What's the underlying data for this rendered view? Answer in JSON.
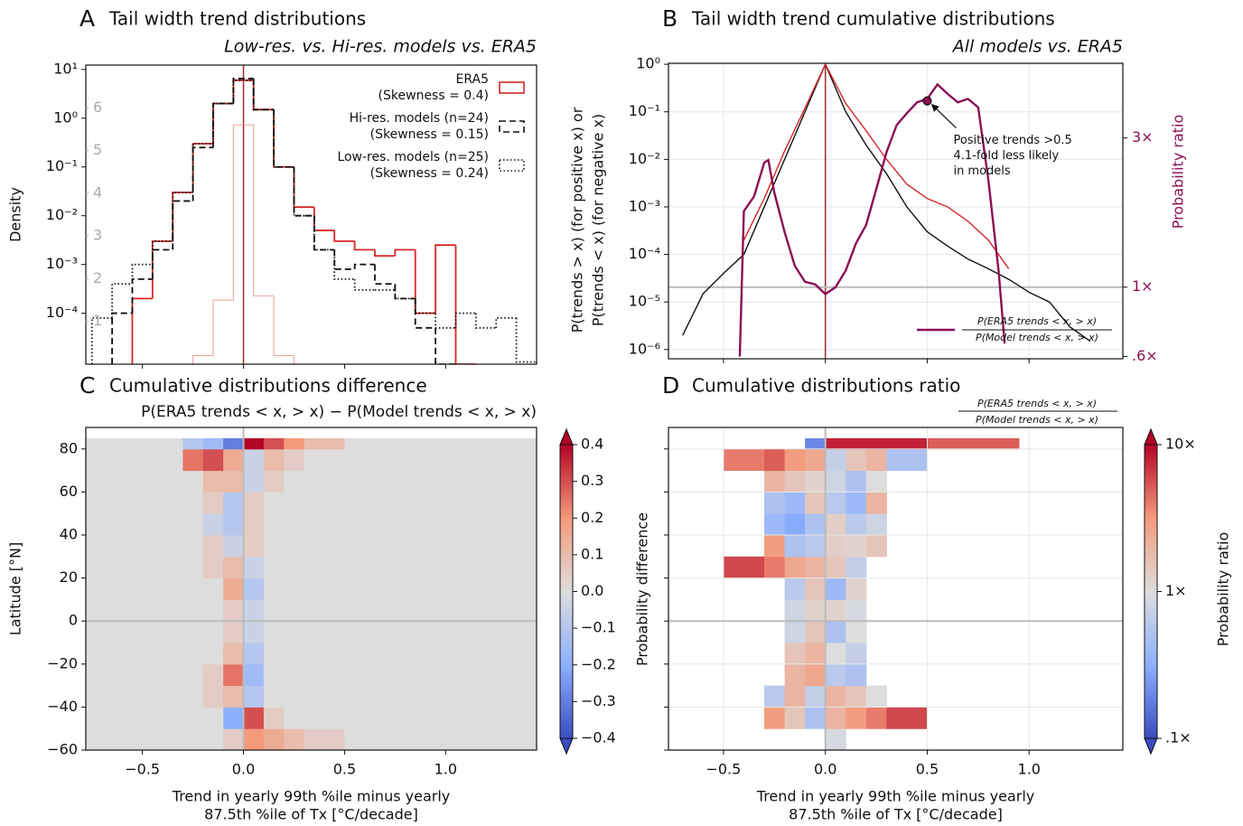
{
  "chart_data": [
    {
      "type": "histogram",
      "panel_label": "A",
      "title": "Tail width trend distributions",
      "subtitle": "Low-res. vs. Hi-res. models vs. ERA5",
      "ylabel": "Density",
      "bins": [
        -0.75,
        -0.65,
        -0.55,
        -0.45,
        -0.35,
        -0.25,
        -0.15,
        -0.05,
        0.05,
        0.15,
        0.25,
        0.35,
        0.45,
        0.55,
        0.65,
        0.75,
        0.85,
        0.95,
        1.05,
        1.15,
        1.25,
        1.35,
        1.45
      ],
      "series": [
        {
          "name": "ERA5",
          "legend_note": "(Skewness = 0.4)",
          "color": "#d62728",
          "linestyle": "solid",
          "values": [
            null,
            null,
            0.0002,
            0.003,
            0.03,
            0.3,
            2,
            6,
            1.5,
            0.1,
            0.015,
            0.005,
            0.003,
            0.002,
            0.0015,
            0.002,
            0.0001,
            0.0025,
            null,
            null,
            null,
            null
          ]
        },
        {
          "name": "Hi-res. models (n=24)",
          "legend_note": "(Skewness = 0.15)",
          "color": "#111111",
          "linestyle": "dashed",
          "values": [
            null,
            0.0001,
            0.0005,
            0.002,
            0.02,
            0.25,
            2,
            6.5,
            1.5,
            0.1,
            0.01,
            0.002,
            0.0008,
            0.001,
            0.0004,
            0.0002,
            5e-05,
            null,
            null,
            null,
            null,
            null
          ]
        },
        {
          "name": "Low-res. models (n=25)",
          "legend_note": "(Skewness = 0.24)",
          "color": "#111111",
          "linestyle": "dotted",
          "values": [
            8e-05,
            0.0004,
            0.001,
            0.003,
            0.03,
            0.3,
            2,
            6,
            1.5,
            0.1,
            0.01,
            0.002,
            0.0005,
            0.0003,
            0.0003,
            0.0002,
            0.0001,
            5e-05,
            0.0001,
            5e-05,
            8e-05,
            1e-05
          ]
        },
        {
          "axis": "y2",
          "color": "#e8a09a",
          "linestyle": "solid",
          "values": [
            null,
            null,
            null,
            null,
            null,
            0.2,
            1.5,
            5.6,
            1.6,
            0.2,
            null,
            null,
            null,
            null,
            null,
            null,
            null,
            null,
            null,
            null,
            null,
            null
          ]
        }
      ],
      "xlim": [
        -0.78,
        1.45
      ],
      "xticks": [
        -0.5,
        0,
        0.5,
        1
      ],
      "xtick_labels": false,
      "ylim": [
        9e-06,
        12.3
      ],
      "log_y": true,
      "yticks": [
        {
          "value": 10,
          "label": "10¹"
        },
        {
          "value": 1,
          "label": "10⁰"
        },
        {
          "value": 0.1,
          "label": "10⁻¹"
        },
        {
          "value": 0.01,
          "label": "10⁻²"
        },
        {
          "value": 0.001,
          "label": "10⁻³"
        },
        {
          "value": 0.0001,
          "label": "10⁻⁴"
        }
      ],
      "y2lim": [
        0,
        7
      ],
      "y2ticks": [
        1,
        2,
        3,
        4,
        5,
        6
      ],
      "y2_color": "#aaaaaa",
      "y2tick_position": "inside",
      "grid": false,
      "legend": "upper right"
    },
    {
      "type": "line",
      "panel_label": "B",
      "title": "Tail width trend cumulative distributions",
      "subtitle": "All models vs. ERA5",
      "ylabel": [
        "P(trends > x) (for positive x) or",
        "P(trends < x) (for negative x)"
      ],
      "y2label": "Probability ratio",
      "x": [
        -0.7,
        -0.6,
        -0.5,
        -0.4,
        -0.3,
        -0.2,
        -0.1,
        0,
        0.1,
        0.2,
        0.3,
        0.4,
        0.5,
        0.6,
        0.7,
        0.8,
        0.9,
        1.0,
        1.1,
        1.2,
        1.3
      ],
      "series": [
        {
          "color": "#111111",
          "values": [
            2e-06,
            1.5e-05,
            4e-05,
            0.0001,
            0.001,
            0.01,
            0.1,
            1,
            0.1,
            0.02,
            0.005,
            0.001,
            0.0003,
            0.00015,
            8e-05,
            5e-05,
            3e-05,
            1.6e-05,
            1e-05,
            3e-06,
            1.5e-06
          ]
        },
        {
          "color": "#d62728",
          "values": [
            null,
            null,
            null,
            0.0002,
            0.0015,
            0.015,
            0.12,
            1,
            0.15,
            0.04,
            0.01,
            0.003,
            0.0015,
            0.001,
            0.0005,
            0.0002,
            5e-05,
            null,
            null,
            null,
            null
          ]
        },
        {
          "name": "P(ERA5 trends < x, > x)",
          "name_denominator": "P(Model trends < x, > x)",
          "color": "#8b0f55",
          "axis": "y2",
          "x": [
            -0.42,
            -0.4,
            -0.35,
            -0.3,
            -0.28,
            -0.25,
            -0.2,
            -0.15,
            -0.1,
            -0.05,
            0,
            0.05,
            0.1,
            0.15,
            0.2,
            0.25,
            0.3,
            0.35,
            0.4,
            0.45,
            0.5,
            0.55,
            0.6,
            0.65,
            0.7,
            0.75,
            0.8,
            0.85,
            0.88
          ],
          "values": [
            0.6,
            1.75,
            1.95,
            2.5,
            2.55,
            2,
            1.5,
            1.17,
            1.04,
            1.02,
            0.95,
            1.0,
            1.13,
            1.38,
            1.58,
            2.06,
            2.7,
            3.3,
            3.6,
            3.9,
            4.0,
            4.45,
            4.15,
            3.9,
            4.0,
            3.76,
            2.2,
            1.13,
            0.66
          ]
        }
      ],
      "annotation": {
        "x": 0.5,
        "y": 0.17,
        "lines": [
          "Positive trends >0.5",
          "4.1-fold less likely",
          "in models"
        ]
      },
      "xlim": [
        -0.77,
        1.46
      ],
      "xticks": [
        -0.5,
        0,
        0.5,
        1
      ],
      "xtick_labels": false,
      "ylim": [
        6.4e-07,
        1.05
      ],
      "log_y": true,
      "yticks": [
        {
          "value": 1,
          "label": "10⁰"
        },
        {
          "value": 0.1,
          "label": "10⁻¹"
        },
        {
          "value": 0.01,
          "label": "10⁻²"
        },
        {
          "value": 0.001,
          "label": "10⁻³"
        },
        {
          "value": 0.0001,
          "label": "10⁻⁴"
        },
        {
          "value": 1e-05,
          "label": "10⁻⁵"
        },
        {
          "value": 1e-06,
          "label": "10⁻⁶"
        }
      ],
      "y2lim": [
        0.59,
        5.2
      ],
      "log_y2": true,
      "y2ticks": [
        {
          "value": 3,
          "label": "3×"
        },
        {
          "value": 1,
          "label": "1×"
        },
        {
          "value": 0.6,
          "label": ".6×"
        }
      ],
      "y2_color": "#8b0f55",
      "y2_refline": 1,
      "grid": true,
      "legend": "lower right"
    },
    {
      "type": "heatmap",
      "panel_label": "C",
      "title": "Cumulative distributions difference",
      "subtitle": "P(ERA5 trends < x, > x) − P(Model trends < x, > x)",
      "ylabel": "Latitude [°N]",
      "xlabel": [
        "Trend in yearly 99th %ile minus yearly",
        "87.5th %ile of Tx [°C/decade]"
      ],
      "x_edges": [
        -0.78,
        -0.5,
        -0.3,
        -0.2,
        -0.1,
        0,
        0.1,
        0.2,
        0.3,
        0.5,
        1.45
      ],
      "y_edges": [
        -60,
        -50,
        -40,
        -30,
        -20,
        -10,
        0,
        10,
        20,
        30,
        40,
        50,
        60,
        70,
        80,
        85
      ],
      "z": [
        [
          0,
          0,
          0,
          0,
          0.05,
          0.2,
          0.15,
          0.1,
          0.05,
          0
        ],
        [
          0,
          0,
          0,
          0,
          -0.2,
          0.3,
          0.05,
          0,
          0,
          0
        ],
        [
          0,
          0,
          0,
          0.05,
          0.1,
          -0.1,
          0,
          0,
          0,
          0
        ],
        [
          0,
          0,
          0,
          0.05,
          0.25,
          -0.15,
          0,
          0,
          0,
          0
        ],
        [
          0,
          0,
          0,
          0,
          0.1,
          -0.1,
          0,
          0,
          0,
          0
        ],
        [
          0,
          0,
          0,
          0,
          0.05,
          -0.05,
          0,
          0,
          0,
          0
        ],
        [
          0,
          0,
          0,
          0,
          0.05,
          -0.05,
          0,
          0,
          0,
          0
        ],
        [
          0,
          0,
          0,
          0,
          0.15,
          -0.1,
          0,
          0,
          0,
          0
        ],
        [
          0,
          0,
          0,
          0.05,
          0.1,
          -0.05,
          0,
          0,
          0,
          0
        ],
        [
          0,
          0,
          0,
          0.05,
          -0.05,
          0.05,
          0,
          0,
          0,
          0
        ],
        [
          0,
          0,
          0,
          -0.05,
          -0.1,
          0.05,
          0,
          0,
          0,
          0
        ],
        [
          0,
          0,
          0,
          0.05,
          -0.1,
          0.05,
          0,
          0,
          0,
          0
        ],
        [
          0,
          0,
          0,
          0.1,
          0.1,
          -0.05,
          0.05,
          0,
          0,
          0
        ],
        [
          0,
          0,
          0.25,
          0.3,
          0.15,
          -0.05,
          0.1,
          0.05,
          0,
          0
        ],
        [
          0,
          0,
          -0.1,
          -0.15,
          -0.3,
          0.4,
          0.3,
          0.2,
          0.1,
          0
        ]
      ],
      "zlim": [
        -0.4,
        0.4
      ],
      "colormap": [
        "#3b4cc0",
        "#8db0fe",
        "#dddddd",
        "#f49a7b",
        "#b40426"
      ],
      "colorbar_label": "Probability difference",
      "colorbar_ticks": [
        0.4,
        0.3,
        0.2,
        0.1,
        {
          "value": 0,
          "label": "0.0"
        },
        {
          "value": -0.1,
          "label": "−0.1"
        },
        {
          "value": -0.2,
          "label": "−0.2"
        },
        {
          "value": -0.3,
          "label": "−0.3"
        },
        {
          "value": -0.4,
          "label": "−0.4"
        }
      ],
      "xlim": [
        -0.78,
        1.45
      ],
      "xticks": [
        {
          "value": -0.5,
          "label": "−0.5"
        },
        {
          "value": 0,
          "label": "0.0"
        },
        0.5,
        {
          "value": 1,
          "label": "1.0"
        }
      ],
      "ylim": [
        -60,
        90
      ],
      "yticks": [
        {
          "value": -60,
          "label": "−60"
        },
        {
          "value": -40,
          "label": "−40"
        },
        {
          "value": -20,
          "label": "−20"
        },
        0,
        20,
        40,
        60,
        80
      ],
      "grid": false
    },
    {
      "type": "heatmap",
      "panel_label": "D",
      "title": "Cumulative distributions ratio",
      "subtitle_numerator": "P(ERA5 trends < x, > x)",
      "subtitle_denominator": "P(Model trends < x, > x)",
      "xlabel": [
        "Trend in yearly 99th %ile minus yearly",
        "87.5th %ile of Tx [°C/decade]"
      ],
      "x_edges": [
        -0.78,
        -0.5,
        -0.3,
        -0.2,
        -0.1,
        0,
        0.1,
        0.2,
        0.3,
        0.5,
        0.95,
        1.45
      ],
      "y_edges": [
        -60,
        -50,
        -40,
        -30,
        -20,
        -10,
        0,
        10,
        20,
        30,
        40,
        50,
        60,
        70,
        80,
        85
      ],
      "z": [
        [
          null,
          null,
          null,
          null,
          null,
          0.9,
          null,
          null,
          null,
          null,
          null
        ],
        [
          null,
          null,
          3,
          1.5,
          0.5,
          2,
          3,
          4,
          6,
          null,
          null
        ],
        [
          null,
          null,
          0.6,
          2,
          0.7,
          2,
          1.5,
          1,
          null,
          null,
          null
        ],
        [
          null,
          null,
          null,
          2,
          2.5,
          0.6,
          0.5,
          null,
          null,
          null,
          null
        ],
        [
          null,
          null,
          null,
          1.5,
          2,
          1,
          0.7,
          null,
          null,
          null,
          null
        ],
        [
          null,
          null,
          null,
          0.8,
          1.5,
          0.5,
          1,
          null,
          null,
          null,
          null
        ],
        [
          null,
          null,
          null,
          0.8,
          1.2,
          1.2,
          0.9,
          null,
          null,
          null,
          null
        ],
        [
          null,
          null,
          null,
          0.6,
          1.5,
          0.4,
          1.2,
          null,
          null,
          null,
          null
        ],
        [
          null,
          6,
          4,
          2.5,
          2,
          1.5,
          0.7,
          null,
          null,
          null,
          null
        ],
        [
          null,
          null,
          3,
          0.5,
          0.6,
          1.3,
          1.2,
          1.5,
          null,
          null,
          null
        ],
        [
          null,
          null,
          0.4,
          0.3,
          0.5,
          1.3,
          0.6,
          0.8,
          null,
          null,
          null
        ],
        [
          null,
          null,
          0.5,
          0.4,
          1.5,
          0.6,
          0.4,
          2,
          null,
          null,
          null
        ],
        [
          null,
          null,
          2,
          1.5,
          1.2,
          0.8,
          0.5,
          1,
          null,
          null,
          null
        ],
        [
          null,
          4,
          5,
          3,
          2.5,
          0.7,
          1.5,
          2,
          0.5,
          null,
          null
        ],
        [
          null,
          null,
          null,
          null,
          0.2,
          8,
          8,
          8,
          8,
          5,
          null
        ]
      ],
      "zlim": [
        0.1,
        10
      ],
      "color_log": true,
      "colormap": [
        "#3b4cc0",
        "#8db0fe",
        "#dddddd",
        "#f49a7b",
        "#b40426"
      ],
      "colorbar_label": "Probability ratio",
      "colorbar_ticks": [
        {
          "value": 10,
          "label": "10×"
        },
        {
          "value": 1,
          "label": "1×"
        },
        {
          "value": 0.1,
          "label": ".1×"
        }
      ],
      "xlim": [
        -0.77,
        1.46
      ],
      "xticks": [
        {
          "value": -0.5,
          "label": "−0.5"
        },
        {
          "value": 0,
          "label": "0.0"
        },
        0.5,
        {
          "value": 1,
          "label": "1.0"
        }
      ],
      "ylim": [
        -60,
        90
      ],
      "yticks": [
        -60,
        -40,
        -20,
        0,
        20,
        40,
        60,
        80
      ],
      "ytick_labels": false,
      "grid": true
    }
  ]
}
